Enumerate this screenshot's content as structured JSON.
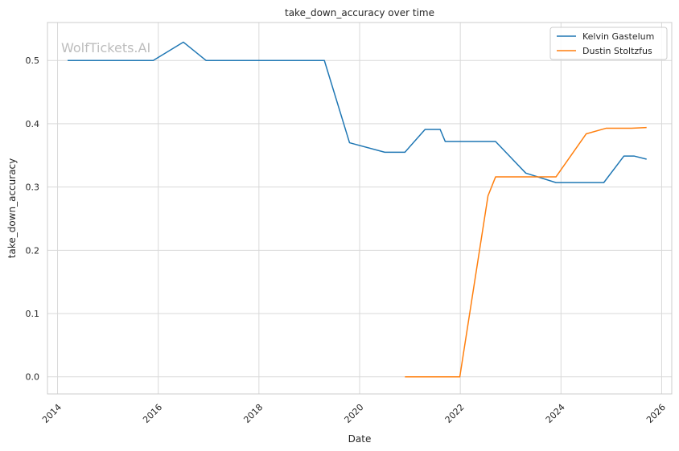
{
  "chart_data": {
    "type": "line",
    "title": "take_down_accuracy over time",
    "xlabel": "Date",
    "ylabel": "take_down_accuracy",
    "watermark": "WolfTickets.AI",
    "xlim": [
      2013.8,
      2026.2
    ],
    "ylim": [
      -0.027,
      0.56
    ],
    "x_ticks": [
      2014,
      2016,
      2018,
      2020,
      2022,
      2024,
      2026
    ],
    "x_tick_labels": [
      "2014",
      "2016",
      "2018",
      "2020",
      "2022",
      "2024",
      "2026"
    ],
    "y_ticks": [
      0.0,
      0.1,
      0.2,
      0.3,
      0.4,
      0.5
    ],
    "y_tick_labels": [
      "0.0",
      "0.1",
      "0.2",
      "0.3",
      "0.4",
      "0.5"
    ],
    "grid": true,
    "legend_position": "top-right",
    "series": [
      {
        "name": "Kelvin Gastelum",
        "color": "#1f77b4",
        "x": [
          2014.2,
          2015.9,
          2016.5,
          2016.95,
          2019.3,
          2019.8,
          2020.5,
          2020.9,
          2021.3,
          2021.6,
          2021.7,
          2022.7,
          2023.3,
          2023.9,
          2024.2,
          2024.85,
          2025.25,
          2025.45,
          2025.7
        ],
        "y": [
          0.5,
          0.5,
          0.529,
          0.5,
          0.5,
          0.37,
          0.355,
          0.355,
          0.391,
          0.391,
          0.372,
          0.372,
          0.322,
          0.307,
          0.307,
          0.307,
          0.349,
          0.349,
          0.344
        ]
      },
      {
        "name": "Dustin Stoltzfus",
        "color": "#ff7f0e",
        "x": [
          2020.9,
          2021.4,
          2021.99,
          2022.55,
          2022.7,
          2023.5,
          2023.9,
          2024.5,
          2024.9,
          2025.4,
          2025.7
        ],
        "y": [
          0.0,
          0.0,
          0.0,
          0.286,
          0.316,
          0.316,
          0.316,
          0.384,
          0.393,
          0.393,
          0.394
        ]
      }
    ]
  }
}
